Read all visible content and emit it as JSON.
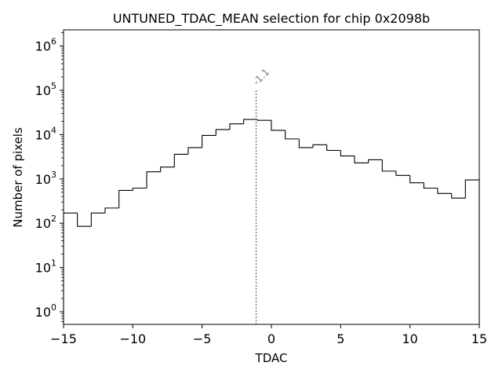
{
  "chart_data": {
    "type": "histogram",
    "title": "UNTUNED_TDAC_MEAN selection for chip 0x2098b",
    "xlabel": "TDAC",
    "ylabel": "Number of pixels",
    "xlim": [
      -15,
      15
    ],
    "ylim": [
      0.5,
      2000000
    ],
    "yscale": "log",
    "grid": false,
    "x_ticks": [
      -15,
      -10,
      -5,
      0,
      5,
      10,
      15
    ],
    "x_tick_labels": [
      "−15",
      "−10",
      "−5",
      "0",
      "5",
      "10",
      "15"
    ],
    "y_ticks": [
      1,
      10,
      100,
      1000,
      10000,
      100000,
      1000000
    ],
    "y_tick_labels": [
      {
        "base": "10",
        "exp": "0"
      },
      {
        "base": "10",
        "exp": "1"
      },
      {
        "base": "10",
        "exp": "2"
      },
      {
        "base": "10",
        "exp": "3"
      },
      {
        "base": "10",
        "exp": "4"
      },
      {
        "base": "10",
        "exp": "5"
      },
      {
        "base": "10",
        "exp": "6"
      }
    ],
    "bin_edges": [
      -15,
      -14,
      -13,
      -12,
      -11,
      -10,
      -9,
      -8,
      -7,
      -6,
      -5,
      -4,
      -3,
      -2,
      -1,
      0,
      1,
      2,
      3,
      4,
      5,
      6,
      7,
      8,
      9,
      10,
      11,
      12,
      13,
      14,
      15
    ],
    "counts": [
      170,
      85,
      170,
      220,
      550,
      620,
      1450,
      1850,
      3600,
      5100,
      9600,
      13000,
      17500,
      22000,
      21000,
      12500,
      8000,
      5100,
      5900,
      4400,
      3300,
      2300,
      2700,
      1500,
      1200,
      820,
      620,
      470,
      370,
      950
    ],
    "color": "#000000",
    "annotation": {
      "x": -1.1,
      "y_top": 100000,
      "text": "-1.1",
      "color": "#777777"
    }
  }
}
